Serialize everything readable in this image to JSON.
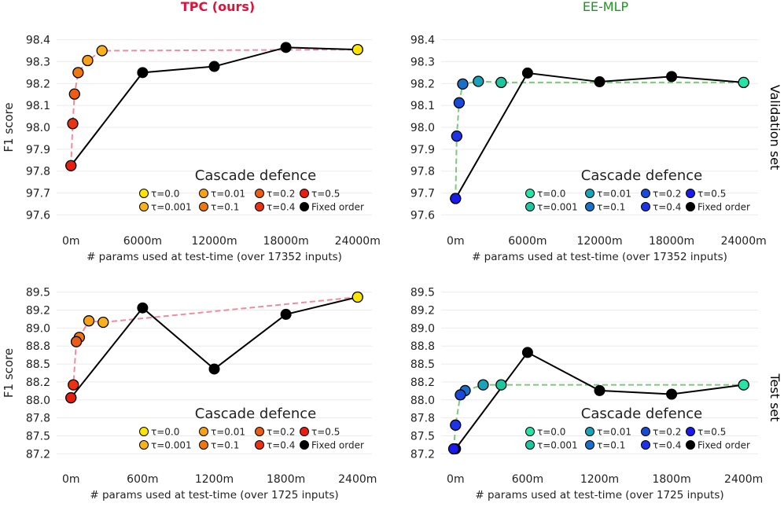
{
  "figure": {
    "column_titles": [
      {
        "text": "TPC (ours)",
        "color": "#dc143c"
      },
      {
        "text": "EE-MLP",
        "color": "#1a9a1a"
      }
    ],
    "row_titles": [
      "Validation set",
      "Test set"
    ],
    "legend_title": "Cascade defence",
    "legend_fixed_label": "Fixed order"
  },
  "chart_data": [
    {
      "type": "line",
      "panel": "validation-tpc",
      "title": "TPC (ours)",
      "xlabel": "# params used at test-time (over 17352 inputs)",
      "ylabel": "F1 score",
      "xlim": [
        -1200,
        25200
      ],
      "ylim": [
        97.58,
        98.42
      ],
      "xticks": [
        0,
        6000,
        12000,
        18000,
        24000
      ],
      "xtick_labels": [
        "0m",
        "6000m",
        "12000m",
        "18000m",
        "24000m"
      ],
      "yticks": [
        97.6,
        97.7,
        97.8,
        97.9,
        98.0,
        98.1,
        98.2,
        98.3,
        98.4
      ],
      "ytick_labels": [
        "97.6",
        "97.7",
        "97.8",
        "97.9",
        "98.0",
        "98.1",
        "98.2",
        "98.3",
        "98.4"
      ],
      "grid": "horizontal",
      "legend_position": "lower-right",
      "cascade_line_color": "#f08ca0",
      "series": [
        {
          "name": "τ=0.0",
          "color": "#ffe400",
          "x": 24000,
          "y": 98.355
        },
        {
          "name": "τ=0.001",
          "color": "#f9b21c",
          "x": 2600,
          "y": 98.35
        },
        {
          "name": "τ=0.01",
          "color": "#f7a01a",
          "x": 1400,
          "y": 98.305
        },
        {
          "name": "τ=0.1",
          "color": "#ee7712",
          "x": 600,
          "y": 98.25
        },
        {
          "name": "τ=0.2",
          "color": "#ec5c14",
          "x": 300,
          "y": 98.152
        },
        {
          "name": "τ=0.4",
          "color": "#e83212",
          "x": 150,
          "y": 98.017
        },
        {
          "name": "τ=0.5",
          "color": "#e81e0e",
          "x": 0,
          "y": 97.825
        }
      ],
      "fixed_order": {
        "name": "Fixed order",
        "x": [
          0,
          6000,
          12000,
          18000,
          24000
        ],
        "y": [
          97.825,
          98.25,
          98.278,
          98.365,
          98.355
        ]
      }
    },
    {
      "type": "line",
      "panel": "validation-eemlp",
      "title": "EE-MLP",
      "xlabel": "# params used at test-time (over 17352 inputs)",
      "ylabel": "",
      "xlim": [
        -1200,
        25200
      ],
      "ylim": [
        97.58,
        98.42
      ],
      "xticks": [
        0,
        6000,
        12000,
        18000,
        24000
      ],
      "xtick_labels": [
        "0m",
        "6000m",
        "12000m",
        "18000m",
        "24000m"
      ],
      "yticks": [
        97.6,
        97.7,
        97.8,
        97.9,
        98.0,
        98.1,
        98.2,
        98.3,
        98.4
      ],
      "ytick_labels": [
        "97.6",
        "97.7",
        "97.8",
        "97.9",
        "98.0",
        "98.1",
        "98.2",
        "98.3",
        "98.4"
      ],
      "grid": "horizontal",
      "legend_position": "lower-right",
      "cascade_line_color": "#7ec87e",
      "series": [
        {
          "name": "τ=0.0",
          "color": "#27e3a7",
          "x": 24000,
          "y": 98.205
        },
        {
          "name": "τ=0.001",
          "color": "#1ec59d",
          "x": 3800,
          "y": 98.205
        },
        {
          "name": "τ=0.01",
          "color": "#1aa2ba",
          "x": 1900,
          "y": 98.21
        },
        {
          "name": "τ=0.1",
          "color": "#1a6fc8",
          "x": 600,
          "y": 98.198
        },
        {
          "name": "τ=0.2",
          "color": "#1a49d8",
          "x": 300,
          "y": 98.112
        },
        {
          "name": "τ=0.4",
          "color": "#1e32e8",
          "x": 100,
          "y": 97.96
        },
        {
          "name": "τ=0.5",
          "color": "#1a1aee",
          "x": 0,
          "y": 97.675
        }
      ],
      "fixed_order": {
        "name": "Fixed order",
        "x": [
          0,
          6000,
          12000,
          18000,
          24000
        ],
        "y": [
          97.675,
          98.248,
          98.208,
          98.232,
          98.205
        ]
      }
    },
    {
      "type": "line",
      "panel": "test-tpc",
      "title": "",
      "xlabel": "# params used at test-time (over 1725 inputs)",
      "ylabel": "F1 score",
      "xlim": [
        -120,
        2520
      ],
      "ylim": [
        87.2,
        89.55
      ],
      "xticks": [
        0,
        600,
        1200,
        1800,
        2400
      ],
      "xtick_labels": [
        "0m",
        "600m",
        "1200m",
        "1800m",
        "2400m"
      ],
      "yticks": [
        87.25,
        87.5,
        87.75,
        88.0,
        88.25,
        88.5,
        88.75,
        89.0,
        89.25,
        89.5
      ],
      "ytick_labels": [
        "87.2",
        "87.5",
        "87.8",
        "88.0",
        "88.2",
        "88.5",
        "88.8",
        "89.0",
        "89.2",
        "89.5"
      ],
      "grid": "horizontal",
      "legend_position": "lower-right",
      "cascade_line_color": "#f08ca0",
      "series": [
        {
          "name": "τ=0.0",
          "color": "#ffe400",
          "x": 2400,
          "y": 89.43
        },
        {
          "name": "τ=0.001",
          "color": "#f9b21c",
          "x": 270,
          "y": 89.08
        },
        {
          "name": "τ=0.01",
          "color": "#f7a01a",
          "x": 150,
          "y": 89.1
        },
        {
          "name": "τ=0.1",
          "color": "#ee7712",
          "x": 70,
          "y": 88.87
        },
        {
          "name": "τ=0.2",
          "color": "#ec5c14",
          "x": 45,
          "y": 88.81
        },
        {
          "name": "τ=0.4",
          "color": "#e83212",
          "x": 20,
          "y": 88.21
        },
        {
          "name": "τ=0.5",
          "color": "#e81e0e",
          "x": 0,
          "y": 88.03
        }
      ],
      "fixed_order": {
        "name": "Fixed order",
        "x": [
          0,
          600,
          1200,
          1800,
          2400
        ],
        "y": [
          88.03,
          89.28,
          88.43,
          89.19,
          89.43
        ]
      }
    },
    {
      "type": "line",
      "panel": "test-eemlp",
      "title": "",
      "xlabel": "# params used at test-time (over 1725 inputs)",
      "ylabel": "",
      "xlim": [
        -120,
        2520
      ],
      "ylim": [
        87.2,
        89.55
      ],
      "xticks": [
        0,
        600,
        1200,
        1800,
        2400
      ],
      "xtick_labels": [
        "0m",
        "600m",
        "1200m",
        "1800m",
        "2400m"
      ],
      "yticks": [
        87.25,
        87.5,
        87.75,
        88.0,
        88.25,
        88.5,
        88.75,
        89.0,
        89.25,
        89.5
      ],
      "ytick_labels": [
        "87.2",
        "87.5",
        "87.8",
        "88.0",
        "88.2",
        "88.5",
        "88.8",
        "89.0",
        "89.2",
        "89.5"
      ],
      "grid": "horizontal",
      "legend_position": "lower-right",
      "cascade_line_color": "#7ec87e",
      "series": [
        {
          "name": "τ=0.0",
          "color": "#27e3a7",
          "x": 2400,
          "y": 88.21
        },
        {
          "name": "τ=0.001",
          "color": "#1ec59d",
          "x": 380,
          "y": 88.21
        },
        {
          "name": "τ=0.01",
          "color": "#1aa2ba",
          "x": 230,
          "y": 88.21
        },
        {
          "name": "τ=0.1",
          "color": "#1a6fc8",
          "x": 80,
          "y": 88.13
        },
        {
          "name": "τ=0.2",
          "color": "#1a49d8",
          "x": 40,
          "y": 88.07
        },
        {
          "name": "τ=0.4",
          "color": "#1e32e8",
          "x": 0,
          "y": 87.65
        },
        {
          "name": "τ=0.5",
          "color": "#1a1aee",
          "x": -15,
          "y": 87.32
        }
      ],
      "fixed_order": {
        "name": "Fixed order",
        "x": [
          0,
          600,
          1200,
          1800,
          2400
        ],
        "y": [
          87.32,
          88.66,
          88.13,
          88.08,
          88.21
        ]
      }
    }
  ]
}
